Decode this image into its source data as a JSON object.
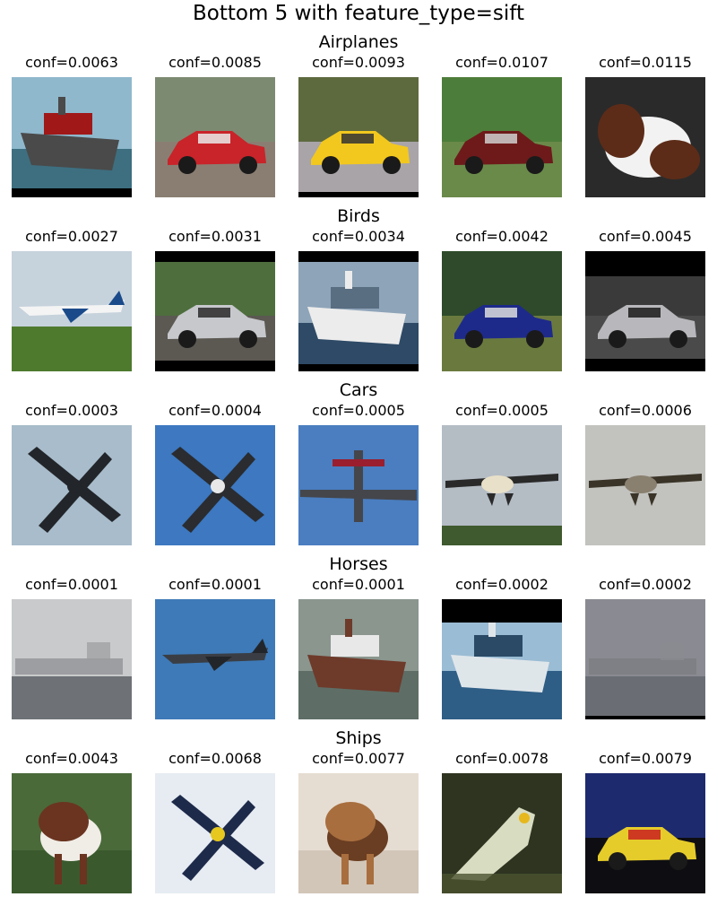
{
  "figure": {
    "title": "Bottom 5 with feature_type=sift"
  },
  "rows": [
    {
      "title": "Airplanes",
      "cells": [
        {
          "conf": "conf=0.0063",
          "subject": "ship",
          "palette": {
            "bg": "#8fb8cc",
            "ground": "#3d6f80",
            "main": "#4a4a4a",
            "accent": "#a01818"
          },
          "letterbox": {
            "top": 0,
            "bottom": 10
          }
        },
        {
          "conf": "conf=0.0085",
          "subject": "car",
          "palette": {
            "bg": "#7d8a72",
            "ground": "#8a7e72",
            "main": "#c8242a",
            "accent": "#eaeaea"
          },
          "letterbox": {
            "top": 0,
            "bottom": 0
          }
        },
        {
          "conf": "conf=0.0093",
          "subject": "car",
          "palette": {
            "bg": "#5d6a3e",
            "ground": "#a8a4a8",
            "main": "#f2c81e",
            "accent": "#333333"
          },
          "letterbox": {
            "top": 0,
            "bottom": 6
          }
        },
        {
          "conf": "conf=0.0107",
          "subject": "car",
          "palette": {
            "bg": "#4d7d3a",
            "ground": "#6a8a4a",
            "main": "#6e1a1a",
            "accent": "#d0d0d0"
          },
          "letterbox": {
            "top": 0,
            "bottom": 0
          }
        },
        {
          "conf": "conf=0.0115",
          "subject": "animal",
          "palette": {
            "bg": "#2a2a2a",
            "ground": "#4a4a4a",
            "main": "#5c2c18",
            "accent": "#f2f2f2"
          },
          "letterbox": {
            "top": 0,
            "bottom": 0
          }
        }
      ]
    },
    {
      "title": "Birds",
      "cells": [
        {
          "conf": "conf=0.0027",
          "subject": "plane-side",
          "palette": {
            "bg": "#c6d2dc",
            "ground": "#4e7a2e",
            "main": "#f4f4f4",
            "accent": "#1a4a8a"
          },
          "letterbox": {
            "top": 0,
            "bottom": 0
          }
        },
        {
          "conf": "conf=0.0031",
          "subject": "car",
          "palette": {
            "bg": "#4e6e3e",
            "ground": "#5c5852",
            "main": "#c6c8cc",
            "accent": "#2a2a2a"
          },
          "letterbox": {
            "top": 12,
            "bottom": 12
          }
        },
        {
          "conf": "conf=0.0034",
          "subject": "ship",
          "palette": {
            "bg": "#8ea4b8",
            "ground": "#2e4a66",
            "main": "#ececec",
            "accent": "#5a6e82"
          },
          "letterbox": {
            "top": 12,
            "bottom": 8
          }
        },
        {
          "conf": "conf=0.0042",
          "subject": "car",
          "palette": {
            "bg": "#2e4a2a",
            "ground": "#6a7a3e",
            "main": "#1e2a8a",
            "accent": "#dddddd"
          },
          "letterbox": {
            "top": 0,
            "bottom": 0
          }
        },
        {
          "conf": "conf=0.0045",
          "subject": "car",
          "palette": {
            "bg": "#3a3a3a",
            "ground": "#4a4a4a",
            "main": "#b8b8bc",
            "accent": "#1a1a1a"
          },
          "letterbox": {
            "top": 28,
            "bottom": 14
          }
        }
      ]
    },
    {
      "title": "Cars",
      "cells": [
        {
          "conf": "conf=0.0003",
          "subject": "plane-x",
          "palette": {
            "bg": "#a8bccb",
            "ground": "#a8bccb",
            "main": "#22252a",
            "accent": "#22252a"
          },
          "letterbox": {
            "top": 0,
            "bottom": 0
          }
        },
        {
          "conf": "conf=0.0004",
          "subject": "plane-x",
          "palette": {
            "bg": "#3d78c0",
            "ground": "#3d78c0",
            "main": "#2a2c30",
            "accent": "#e8e8e8"
          },
          "letterbox": {
            "top": 0,
            "bottom": 0
          }
        },
        {
          "conf": "conf=0.0005",
          "subject": "plane-top",
          "palette": {
            "bg": "#4a7ec0",
            "ground": "#4a7ec0",
            "main": "#44464c",
            "accent": "#9a1e2e"
          },
          "letterbox": {
            "top": 0,
            "bottom": 0
          }
        },
        {
          "conf": "conf=0.0005",
          "subject": "plane-front",
          "palette": {
            "bg": "#b4bcc4",
            "ground": "#3e5a2e",
            "main": "#2a2a2a",
            "accent": "#e8e0c8"
          },
          "letterbox": {
            "top": 0,
            "bottom": 0
          }
        },
        {
          "conf": "conf=0.0006",
          "subject": "plane-front",
          "palette": {
            "bg": "#c2c2be",
            "ground": "#c2c2be",
            "main": "#3a3428",
            "accent": "#8a8070"
          },
          "letterbox": {
            "top": 0,
            "bottom": 0
          }
        }
      ]
    },
    {
      "title": "Horses",
      "cells": [
        {
          "conf": "conf=0.0001",
          "subject": "ship-fog",
          "palette": {
            "bg": "#c8cacb",
            "ground": "#6e7276",
            "main": "#8a8c8e",
            "accent": "#9a9c9e"
          },
          "letterbox": {
            "top": 0,
            "bottom": 0
          }
        },
        {
          "conf": "conf=0.0001",
          "subject": "plane-side",
          "palette": {
            "bg": "#3e7ab8",
            "ground": "#3e7ab8",
            "main": "#3a3e44",
            "accent": "#22262a"
          },
          "letterbox": {
            "top": 0,
            "bottom": 0
          }
        },
        {
          "conf": "conf=0.0001",
          "subject": "ship",
          "palette": {
            "bg": "#8a968e",
            "ground": "#5e6e66",
            "main": "#6e3a2a",
            "accent": "#e8e8e8"
          },
          "letterbox": {
            "top": 0,
            "bottom": 0
          }
        },
        {
          "conf": "conf=0.0002",
          "subject": "ship",
          "palette": {
            "bg": "#9abcd4",
            "ground": "#2e5e86",
            "main": "#dfe6ea",
            "accent": "#2a4a66"
          },
          "letterbox": {
            "top": 26,
            "bottom": 0
          }
        },
        {
          "conf": "conf=0.0002",
          "subject": "ship-fog",
          "palette": {
            "bg": "#8a8a92",
            "ground": "#6a6e74",
            "main": "#7a7c80",
            "accent": "#8a8c90"
          },
          "letterbox": {
            "top": 0,
            "bottom": 4
          }
        }
      ]
    },
    {
      "title": "Ships",
      "cells": [
        {
          "conf": "conf=0.0043",
          "subject": "horse",
          "palette": {
            "bg": "#4a6a3a",
            "ground": "#3a5a2e",
            "main": "#6a3420",
            "accent": "#f0ece6"
          },
          "letterbox": {
            "top": 0,
            "bottom": 0
          }
        },
        {
          "conf": "conf=0.0068",
          "subject": "plane-x",
          "palette": {
            "bg": "#e6ecf2",
            "ground": "#e6ecf2",
            "main": "#1e2a4a",
            "accent": "#e6c81e"
          },
          "letterbox": {
            "top": 0,
            "bottom": 0
          }
        },
        {
          "conf": "conf=0.0077",
          "subject": "horse",
          "palette": {
            "bg": "#e6ddd2",
            "ground": "#d2c6b8",
            "main": "#a86e3e",
            "accent": "#6a3e22"
          },
          "letterbox": {
            "top": 0,
            "bottom": 0
          }
        },
        {
          "conf": "conf=0.0078",
          "subject": "bird",
          "palette": {
            "bg": "#2e3420",
            "ground": "#4a5230",
            "main": "#d8dcc0",
            "accent": "#e6b81e"
          },
          "letterbox": {
            "top": 0,
            "bottom": 0
          }
        },
        {
          "conf": "conf=0.0079",
          "subject": "car",
          "palette": {
            "bg": "#1e2a6e",
            "ground": "#0e0e12",
            "main": "#e6cc2a",
            "accent": "#c82020"
          },
          "letterbox": {
            "top": 0,
            "bottom": 0
          }
        }
      ]
    }
  ]
}
